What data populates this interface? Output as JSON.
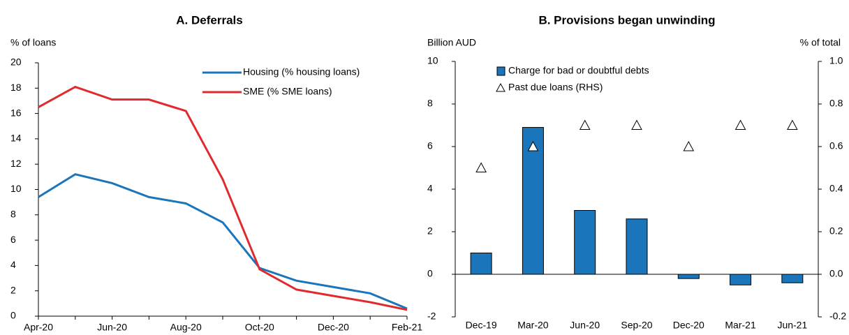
{
  "chart_data": [
    {
      "type": "line",
      "title": "A. Deferrals",
      "ylabel": "% of loans",
      "categories": [
        "Apr-20",
        null,
        "Jun-20",
        null,
        "Aug-20",
        null,
        "Oct-20",
        null,
        "Dec-20",
        null,
        "Feb-21"
      ],
      "series": [
        {
          "name": "Housing (% housing loans)",
          "color": "#1b75bb",
          "values": [
            9.4,
            11.2,
            10.5,
            9.4,
            8.9,
            7.4,
            3.8,
            2.8,
            2.3,
            1.8,
            0.6
          ]
        },
        {
          "name": "SME (% SME loans)",
          "color": "#e02a2e",
          "values": [
            16.5,
            18.1,
            17.1,
            17.1,
            16.2,
            10.8,
            3.7,
            2.1,
            1.6,
            1.1,
            0.5
          ]
        }
      ],
      "ylim": [
        0,
        20
      ],
      "yticks": [
        0,
        2,
        4,
        6,
        8,
        10,
        12,
        14,
        16,
        18,
        20
      ],
      "legend": "upper right"
    },
    {
      "type": "bar",
      "title": "B. Provisions began unwinding",
      "ylabel": "Billion AUD",
      "y2label": "% of total",
      "categories": [
        "Dec-19",
        "Mar-20",
        "Jun-20",
        "Sep-20",
        "Dec-20",
        "Mar-21",
        "Jun-21"
      ],
      "series": [
        {
          "name": "Charge for bad or doubtful debts",
          "color": "#1b75bb",
          "mark": "bar",
          "values": [
            1.0,
            6.9,
            3.0,
            2.6,
            -0.2,
            -0.5,
            -0.4
          ]
        },
        {
          "name": "Past due loans (RHS)",
          "color": "#000000",
          "mark": "triangle",
          "axis": "y2",
          "values": [
            0.5,
            0.6,
            0.7,
            0.7,
            0.6,
            0.7,
            0.7
          ]
        }
      ],
      "ylim": [
        -2,
        10
      ],
      "yticks": [
        -2,
        0,
        2,
        4,
        6,
        8,
        10
      ],
      "y2lim": [
        -0.2,
        1.0
      ],
      "y2ticks": [
        -0.2,
        {
          "value": 0,
          "label": "0.0"
        },
        0.2,
        0.4,
        0.6,
        0.8,
        {
          "value": 1,
          "label": "1.0"
        }
      ],
      "legend": "upper left"
    }
  ]
}
